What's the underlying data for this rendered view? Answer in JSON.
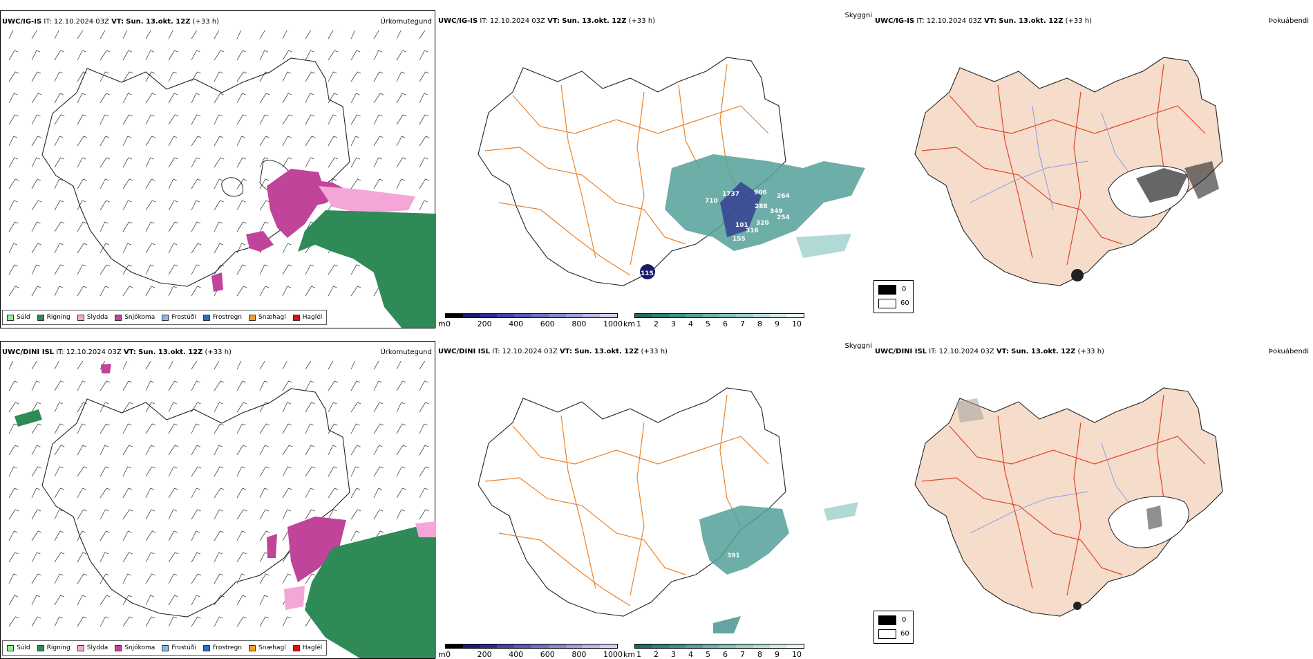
{
  "top": {
    "left": {
      "model": "UWC/IG-IS",
      "it_label": "IT:",
      "it_value": "12.10.2024 03Z",
      "vt_label": "VT:",
      "vt_value": "Sun. 13.okt. 12Z",
      "lead": "(+33 h)",
      "title": "Úrkomutegund"
    },
    "mid": {
      "model": "UWC/IG-IS",
      "it_label": "IT:",
      "it_value": "12.10.2024 03Z",
      "vt_label": "VT:",
      "vt_value": "Sun. 13.okt. 12Z",
      "lead": "(+33 h)",
      "title": "Skyggni",
      "labels": [
        "710",
        "1737",
        "906",
        "264",
        "288",
        "349",
        "254",
        "320",
        "101",
        "316",
        "155",
        "115"
      ]
    },
    "right": {
      "model": "UWC/IG-IS",
      "it_label": "IT:",
      "it_value": "12.10.2024 03Z",
      "vt_label": "VT:",
      "vt_value": "Sun. 13.okt. 12Z",
      "lead": "(+33 h)",
      "title": "Þokuábendi"
    }
  },
  "bottom": {
    "left": {
      "model": "UWC/DINI ISL",
      "it_label": "IT:",
      "it_value": "12.10.2024 03Z",
      "vt_label": "VT:",
      "vt_value": "Sun. 13.okt. 12Z",
      "lead": "(+33 h)",
      "title": "Úrkomutegund"
    },
    "mid": {
      "model": "UWC/DINI ISL",
      "it_label": "IT:",
      "it_value": "12.10.2024 03Z",
      "vt_label": "VT:",
      "vt_value": "Sun. 13.okt. 12Z",
      "lead": "(+33 h)",
      "title": "Skyggni",
      "labels": [
        "391"
      ]
    },
    "right": {
      "model": "UWC/DINI ISL",
      "it_label": "IT:",
      "it_value": "12.10.2024 03Z",
      "vt_label": "VT:",
      "vt_value": "Sun. 13.okt. 12Z",
      "lead": "(+33 h)",
      "title": "Þokuábendi"
    }
  },
  "precip_legend": [
    {
      "label": "Súld",
      "color": "#90ee90"
    },
    {
      "label": "Rigning",
      "color": "#2e8b57"
    },
    {
      "label": "Slydda",
      "color": "#f4a6d7"
    },
    {
      "label": "Snjókoma",
      "color": "#c0449a"
    },
    {
      "label": "Frostúði",
      "color": "#87b8ea"
    },
    {
      "label": "Frostregn",
      "color": "#2e6fc4"
    },
    {
      "label": "Snæhagl",
      "color": "#f0a020"
    },
    {
      "label": "Haglél",
      "color": "#e01010"
    }
  ],
  "height_scale": {
    "unit": "m",
    "ticks": [
      "0",
      "200",
      "400",
      "600",
      "800",
      "1000"
    ],
    "colors": [
      "#000000",
      "#1a1a6e",
      "#2a2a8e",
      "#4444a8",
      "#5a5ab5",
      "#7070c0",
      "#8888cc",
      "#a0a0d8",
      "#b8b8e4",
      "#d0d0ee"
    ]
  },
  "visibility_scale": {
    "unit": "km",
    "ticks": [
      "1",
      "2",
      "3",
      "4",
      "5",
      "6",
      "7",
      "8",
      "9",
      "10"
    ],
    "colors": [
      "#1e6b66",
      "#2d7e78",
      "#3d8f89",
      "#55a09a",
      "#6cb0aa",
      "#85c0bb",
      "#9ecfca",
      "#b8ddd9",
      "#d2ebe8",
      "#ecf7f6"
    ]
  },
  "fog_legend": {
    "black_label": "0",
    "white_label": "60"
  },
  "colors": {
    "rain": "#2e8b57",
    "snow": "#c0449a",
    "sleet": "#f4a6d7",
    "road": "#e8822a",
    "land": "#f5dccb",
    "river": "#7f96e8"
  }
}
